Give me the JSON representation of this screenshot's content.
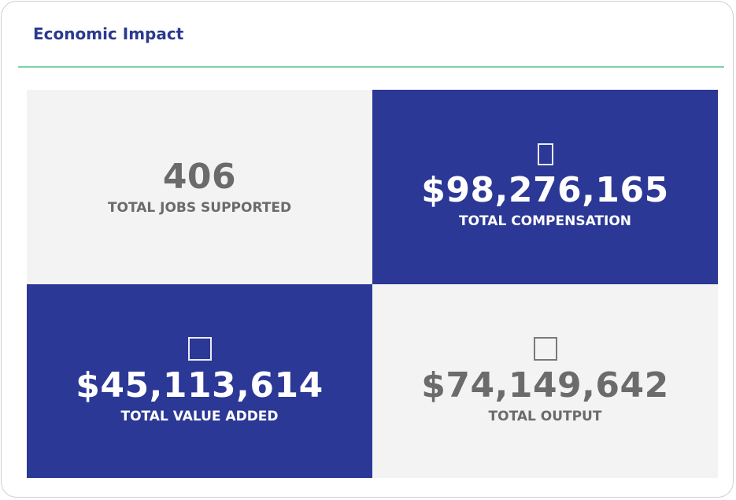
{
  "header": {
    "title": "Economic Impact"
  },
  "tiles": [
    {
      "value": "406",
      "label": "TOTAL JOBS SUPPORTED"
    },
    {
      "value": "$98,276,165",
      "label": "TOTAL COMPENSATION"
    },
    {
      "value": "$45,113,614",
      "label": "TOTAL VALUE ADDED"
    },
    {
      "value": "$74,149,642",
      "label": "TOTAL OUTPUT"
    }
  ]
}
